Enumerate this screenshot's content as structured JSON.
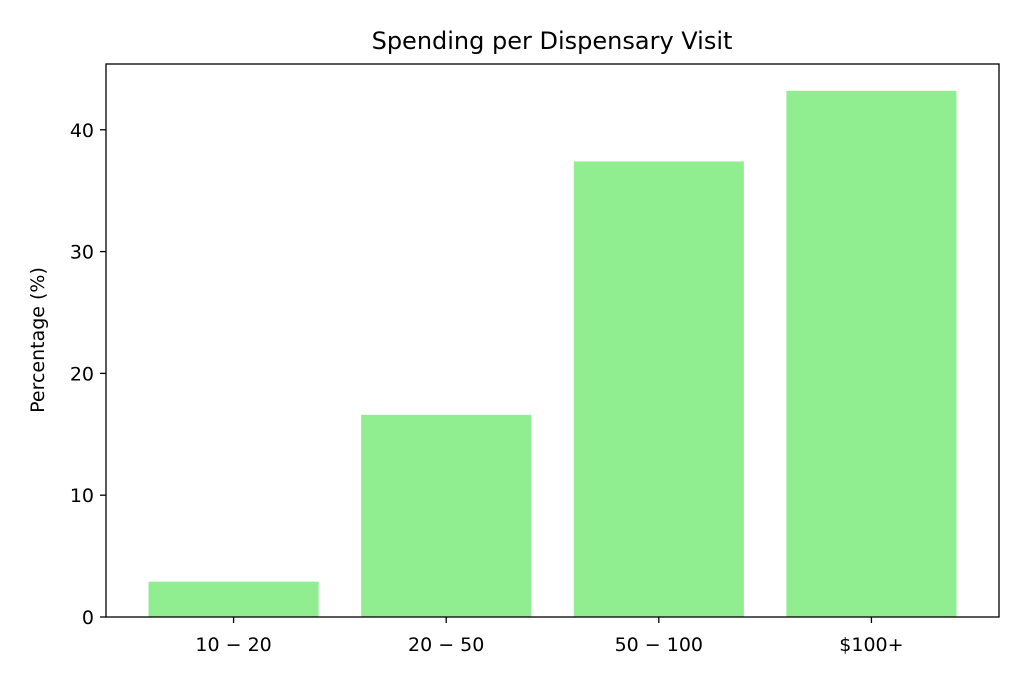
{
  "chart_data": {
    "type": "bar",
    "title": "Spending per Dispensary Visit",
    "xlabel": "",
    "ylabel": "Percentage (%)",
    "categories": [
      "10 − 20",
      "20 − 50",
      "50 − 100",
      "$100+"
    ],
    "values": [
      2.9,
      16.6,
      37.4,
      43.2
    ],
    "ylim": [
      0,
      45.4
    ],
    "yticks": [
      0,
      10,
      20,
      30,
      40
    ],
    "grid": false,
    "bar_color": "#90ee90"
  }
}
